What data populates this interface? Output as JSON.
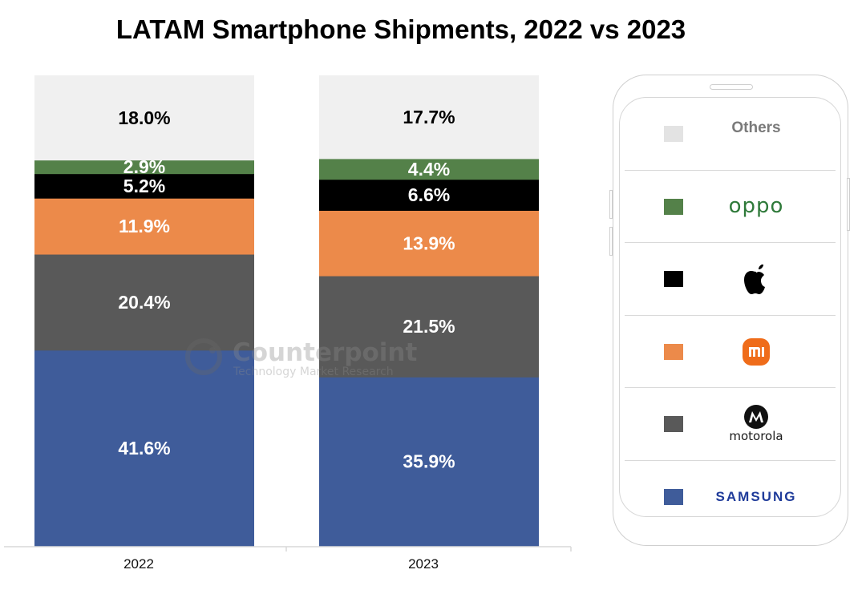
{
  "chart_data": {
    "type": "bar",
    "stacked": true,
    "title": "LATAM Smartphone Shipments, 2022 vs 2023",
    "xlabel": "",
    "ylabel": "",
    "ylim": [
      0,
      100
    ],
    "categories": [
      "2022",
      "2023"
    ],
    "series": [
      {
        "name": "Samsung",
        "color": "#3f5c9a",
        "label_color": "#ffffff",
        "values": [
          41.6,
          35.9
        ],
        "labels": [
          "41.6%",
          "35.9%"
        ]
      },
      {
        "name": "Motorola",
        "color": "#595959",
        "label_color": "#ffffff",
        "values": [
          20.4,
          21.5
        ],
        "labels": [
          "20.4%",
          "21.5%"
        ]
      },
      {
        "name": "Xiaomi",
        "color": "#ec8a4a",
        "label_color": "#ffffff",
        "values": [
          11.9,
          13.9
        ],
        "labels": [
          "11.9%",
          "13.9%"
        ]
      },
      {
        "name": "Apple",
        "color": "#000000",
        "label_color": "#ffffff",
        "values": [
          5.2,
          6.6
        ],
        "labels": [
          "5.2%",
          "6.6%"
        ]
      },
      {
        "name": "OPPO",
        "color": "#548149",
        "label_color": "#ffffff",
        "values": [
          2.9,
          4.4
        ],
        "labels": [
          "2.9%",
          "4.4%"
        ]
      },
      {
        "name": "Others",
        "color": "#f0f0f0",
        "label_color": "#000000",
        "values": [
          18.0,
          17.7
        ],
        "labels": [
          "18.0%",
          "17.7%"
        ]
      }
    ],
    "grid": false,
    "legend": {
      "placement": "right",
      "style": "phone-outline",
      "entries": [
        {
          "name": "Others",
          "display": "Others",
          "color": "#e3e3e3",
          "logo": "text"
        },
        {
          "name": "OPPO",
          "display": "oppo",
          "color": "#548149",
          "logo": "oppo-wordmark"
        },
        {
          "name": "Apple",
          "display": "",
          "color": "#000000",
          "logo": "apple-logo-icon"
        },
        {
          "name": "Xiaomi",
          "display": "mi",
          "color": "#ec8a4a",
          "logo": "xiaomi-logo-icon"
        },
        {
          "name": "Motorola",
          "display": "motorola",
          "color": "#595959",
          "logo": "motorola-logo-icon"
        },
        {
          "name": "Samsung",
          "display": "SAMSUNG",
          "color": "#3f5c9a",
          "logo": "samsung-wordmark"
        }
      ]
    },
    "watermark": {
      "brand": "Counterpoint",
      "tagline": "Technology Market Research"
    }
  }
}
